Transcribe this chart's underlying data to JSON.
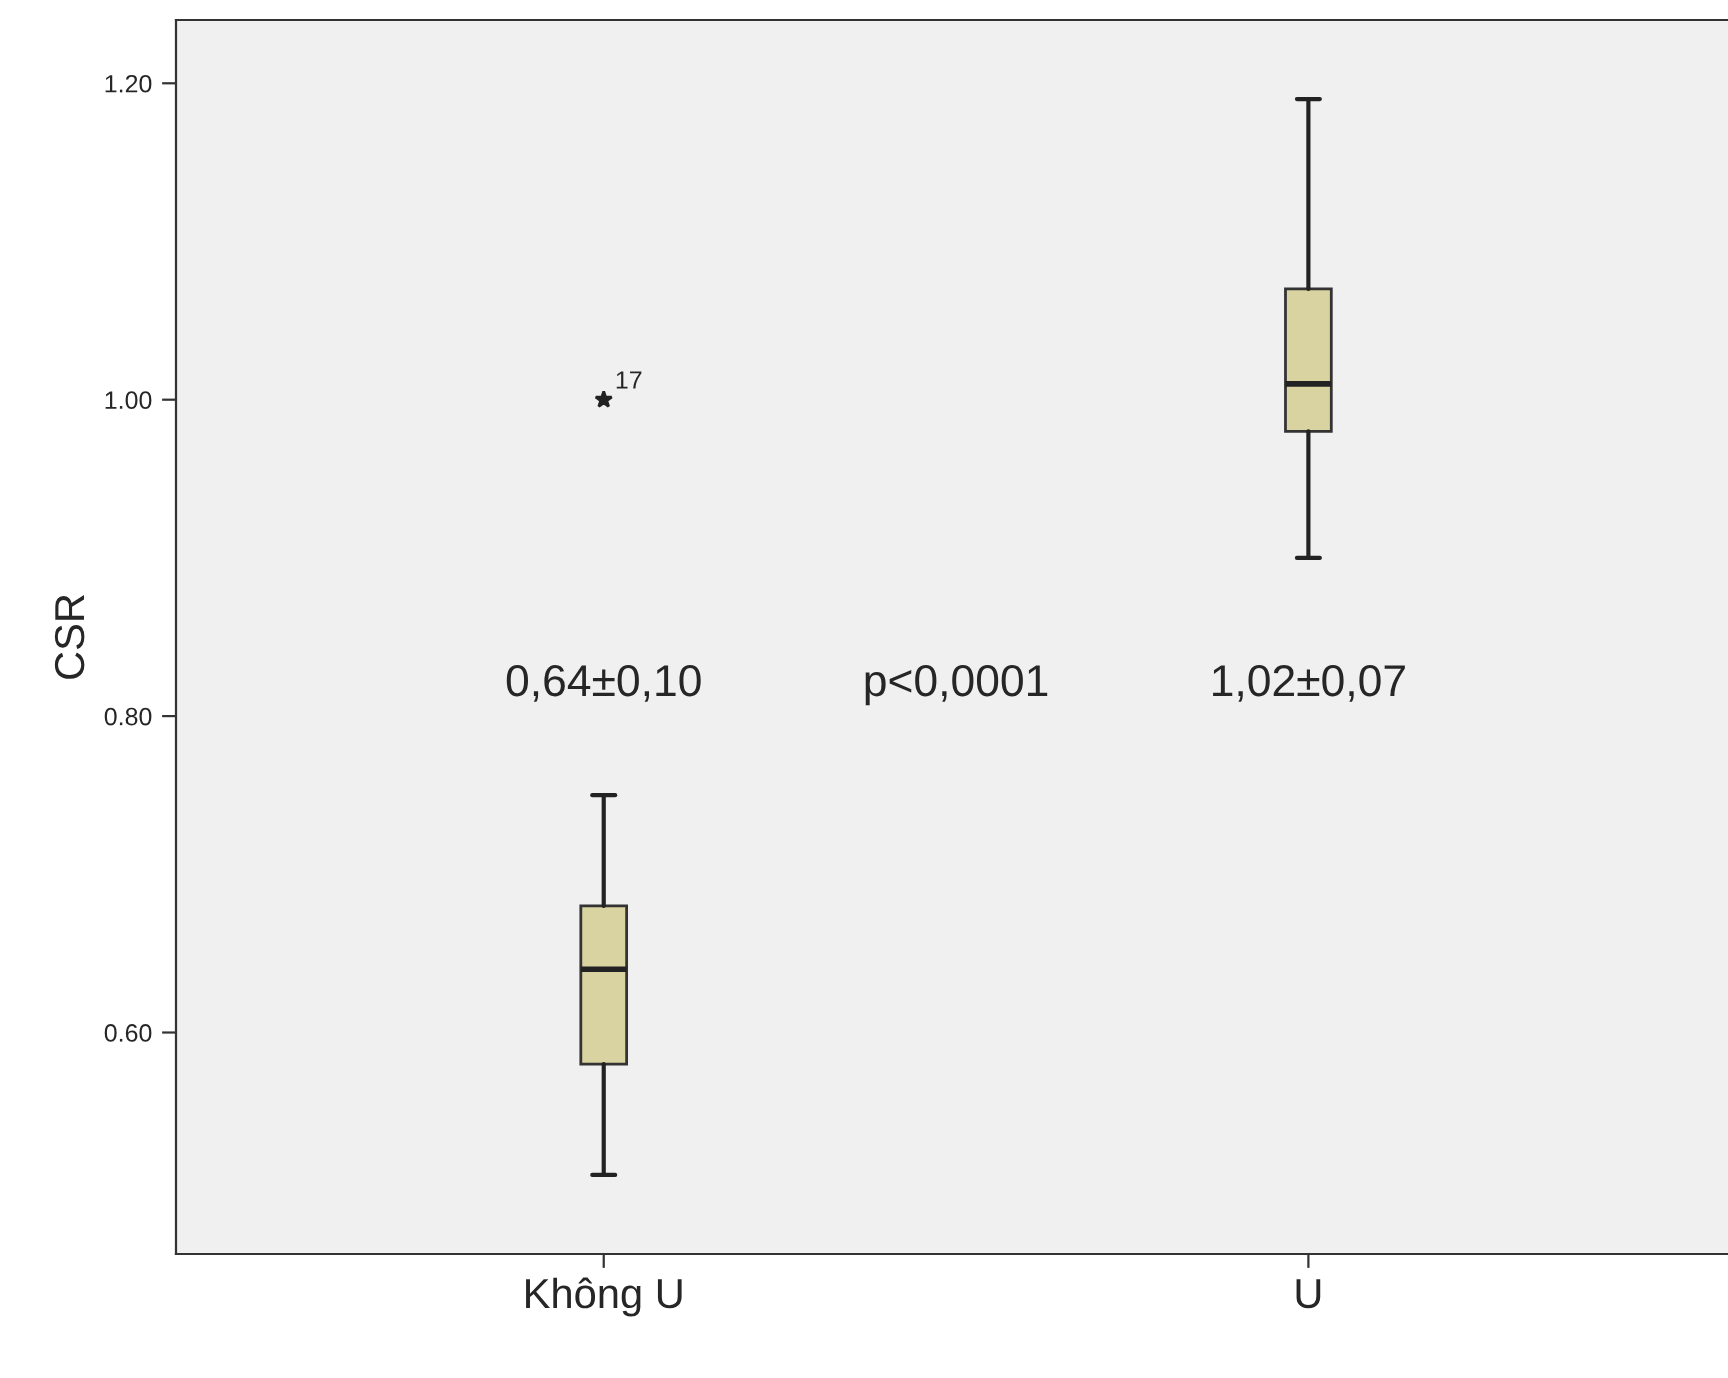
{
  "chart_data": {
    "type": "box",
    "ylabel": "CSR",
    "categories": [
      "Không U",
      "U"
    ],
    "boxes": [
      {
        "low": 0.51,
        "q1": 0.58,
        "median": 0.64,
        "q3": 0.68,
        "high": 0.75,
        "outliers": [
          1.0
        ]
      },
      {
        "low": 0.9,
        "q1": 0.98,
        "median": 1.01,
        "q3": 1.07,
        "high": 1.19
      }
    ],
    "color": "#d8d3a0",
    "marker": "star",
    "ylim": [
      0.46,
      1.24
    ],
    "yticks": [
      {
        "value": 0.6,
        "label": "0.60"
      },
      {
        "value": 0.8,
        "label": "0.80"
      },
      {
        "value": 1.0,
        "label": "1.00"
      },
      {
        "value": 1.2,
        "label": "1.20"
      }
    ],
    "grid": false,
    "annotations": [
      "0,64±0,10",
      "p<0,0001",
      "1,02±0,07",
      "17"
    ]
  }
}
